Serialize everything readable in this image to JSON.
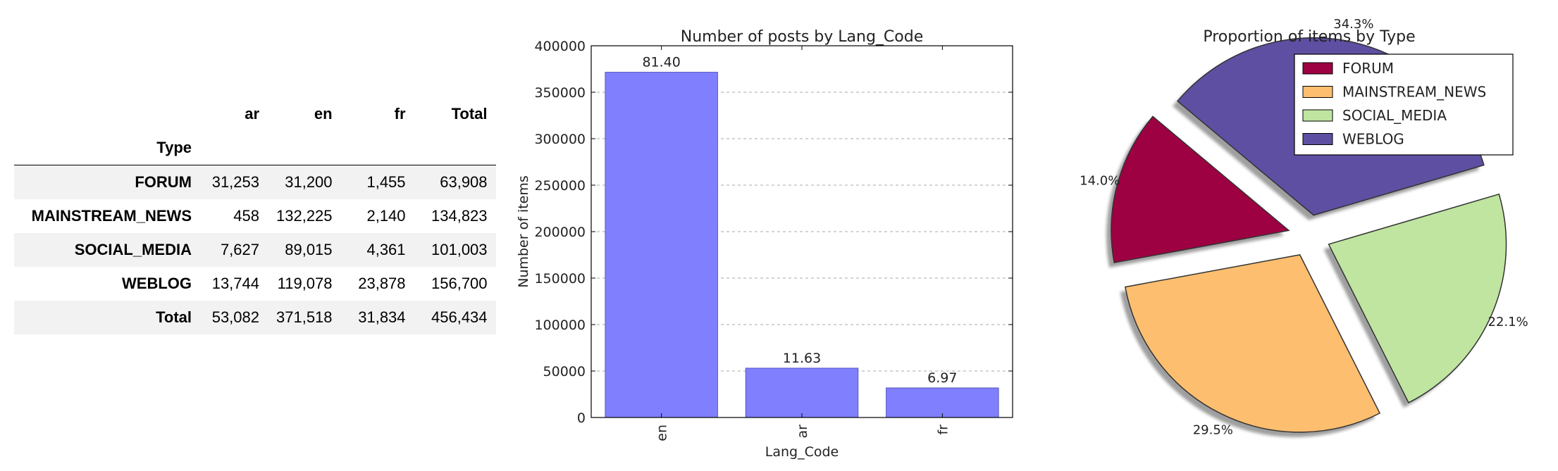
{
  "table": {
    "columns": [
      "ar",
      "en",
      "fr",
      "Total"
    ],
    "index_name": "Type",
    "rows": [
      {
        "label": "FORUM",
        "cells": [
          "31,253",
          "31,200",
          "1,455",
          "63,908"
        ]
      },
      {
        "label": "MAINSTREAM_NEWS",
        "cells": [
          "458",
          "132,225",
          "2,140",
          "134,823"
        ]
      },
      {
        "label": "SOCIAL_MEDIA",
        "cells": [
          "7,627",
          "89,015",
          "4,361",
          "101,003"
        ]
      },
      {
        "label": "WEBLOG",
        "cells": [
          "13,744",
          "119,078",
          "23,878",
          "156,700"
        ]
      },
      {
        "label": "Total",
        "cells": [
          "53,082",
          "371,518",
          "31,834",
          "456,434"
        ]
      }
    ]
  },
  "chart_data": [
    {
      "type": "bar",
      "title": "Number of posts by Lang_Code",
      "xlabel": "Lang_Code",
      "ylabel": "Number of items",
      "categories": [
        "en",
        "ar",
        "fr"
      ],
      "values": [
        371518,
        53082,
        31834
      ],
      "data_labels": [
        "81.40",
        "11.63",
        "6.97"
      ],
      "ylim": [
        0,
        400000
      ],
      "yticks": [
        "0",
        "50000",
        "100000",
        "150000",
        "200000",
        "250000",
        "300000",
        "350000",
        "400000"
      ],
      "ytick_values": [
        0,
        50000,
        100000,
        150000,
        200000,
        250000,
        300000,
        350000,
        400000
      ],
      "grid": "y-dashed",
      "bar_color": "#8080ff",
      "bar_edge": "#5555bb"
    },
    {
      "type": "pie",
      "title": "Proportion of items by Type",
      "legend_placement": "top-right",
      "slices": [
        {
          "label": "FORUM",
          "value": 14.0,
          "pct_label": "14.0%",
          "color": "#9e0142"
        },
        {
          "label": "MAINSTREAM_NEWS",
          "value": 29.5,
          "pct_label": "29.5%",
          "color": "#fdbe6f"
        },
        {
          "label": "SOCIAL_MEDIA",
          "value": 22.1,
          "pct_label": "22.1%",
          "color": "#bfe5a0"
        },
        {
          "label": "WEBLOG",
          "value": 34.3,
          "pct_label": "34.3%",
          "color": "#5e4fa2"
        }
      ]
    }
  ]
}
